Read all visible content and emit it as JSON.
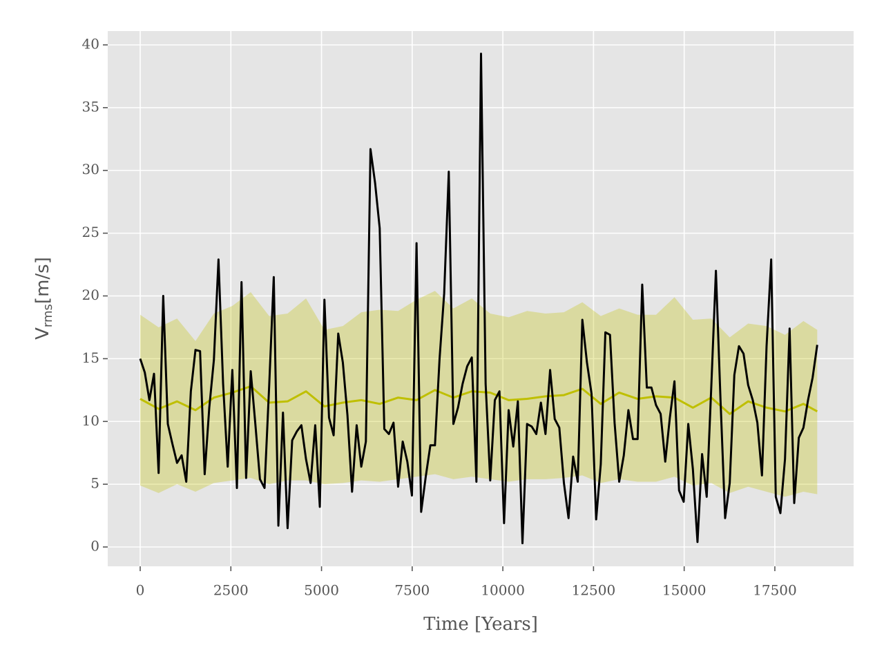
{
  "chart_data": {
    "type": "line",
    "xlabel": "Time [Years]",
    "ylabel": [
      "V",
      "rms",
      "[m/s]"
    ],
    "xlim": [
      -895,
      19672
    ],
    "ylim": [
      -1.54,
      41.1
    ],
    "xticks": [
      0,
      2500,
      5000,
      7500,
      10000,
      12500,
      15000,
      17500
    ],
    "yticks": [
      0,
      5,
      10,
      15,
      20,
      25,
      30,
      35,
      40
    ],
    "grid": true,
    "band": {
      "color": "#bfbf00",
      "alpha": 0.3,
      "x": [
        0,
        508,
        1016,
        1524,
        2032,
        2540,
        3048,
        3556,
        4064,
        4572,
        5080,
        5588,
        6096,
        6604,
        7112,
        7620,
        8128,
        8636,
        9144,
        9652,
        10160,
        10668,
        11176,
        11684,
        12192,
        12700,
        13208,
        13716,
        14224,
        14732,
        15240,
        15748,
        16256,
        16764,
        17272,
        17780,
        18288,
        18669
      ],
      "upper": [
        18.5,
        17.5,
        18.2,
        16.4,
        18.6,
        19.2,
        20.3,
        18.4,
        18.6,
        19.8,
        17.3,
        17.6,
        18.7,
        18.9,
        18.8,
        19.7,
        20.4,
        19.0,
        19.8,
        18.6,
        18.3,
        18.8,
        18.6,
        18.7,
        19.5,
        18.4,
        19.0,
        18.5,
        18.5,
        19.9,
        18.1,
        18.2,
        16.7,
        17.8,
        17.6,
        16.9,
        18.0,
        17.3
      ],
      "lower": [
        4.9,
        4.3,
        5.0,
        4.4,
        5.1,
        5.3,
        5.5,
        5.0,
        5.3,
        5.3,
        5.0,
        5.1,
        5.3,
        5.2,
        5.4,
        5.6,
        5.8,
        5.4,
        5.6,
        5.4,
        5.2,
        5.4,
        5.4,
        5.5,
        5.7,
        5.1,
        5.4,
        5.2,
        5.2,
        5.6,
        4.9,
        5.1,
        4.3,
        4.8,
        4.4,
        4.0,
        4.4,
        4.2
      ]
    },
    "series": [
      {
        "color": "#bfbf00",
        "x": [
          0,
          508,
          1016,
          1524,
          2032,
          2540,
          3048,
          3556,
          4064,
          4572,
          5080,
          5588,
          6096,
          6604,
          7112,
          7620,
          8128,
          8636,
          9144,
          9652,
          10160,
          10668,
          11176,
          11684,
          12192,
          12700,
          13208,
          13716,
          14224,
          14732,
          15240,
          15748,
          16256,
          16764,
          17272,
          17780,
          18288,
          18669
        ],
        "values": [
          11.8,
          11.0,
          11.6,
          10.9,
          11.9,
          12.3,
          12.8,
          11.5,
          11.6,
          12.4,
          11.2,
          11.5,
          11.7,
          11.4,
          11.9,
          11.7,
          12.5,
          11.9,
          12.4,
          12.3,
          11.7,
          11.8,
          12.0,
          12.1,
          12.6,
          11.4,
          12.3,
          11.8,
          12.0,
          11.9,
          11.1,
          11.9,
          10.6,
          11.6,
          11.1,
          10.8,
          11.4,
          10.8
        ]
      },
      {
        "color": "#000000",
        "x": [
          0,
          127,
          254,
          381,
          508,
          635,
          762,
          889,
          1016,
          1143,
          1270,
          1397,
          1524,
          1651,
          1778,
          1905,
          2032,
          2159,
          2286,
          2413,
          2540,
          2667,
          2794,
          2921,
          3048,
          3175,
          3302,
          3429,
          3556,
          3683,
          3810,
          3937,
          4064,
          4191,
          4318,
          4445,
          4572,
          4699,
          4826,
          4953,
          5080,
          5207,
          5334,
          5461,
          5588,
          5715,
          5842,
          5969,
          6096,
          6223,
          6350,
          6477,
          6604,
          6731,
          6858,
          6985,
          7112,
          7239,
          7366,
          7493,
          7620,
          7747,
          7874,
          8001,
          8128,
          8255,
          8382,
          8509,
          8636,
          8763,
          8890,
          9017,
          9144,
          9271,
          9398,
          9525,
          9652,
          9779,
          9906,
          10033,
          10160,
          10287,
          10414,
          10541,
          10668,
          10795,
          10922,
          11049,
          11176,
          11303,
          11430,
          11557,
          11684,
          11811,
          11938,
          12065,
          12192,
          12319,
          12446,
          12573,
          12700,
          12827,
          12954,
          13081,
          13208,
          13335,
          13462,
          13589,
          13716,
          13843,
          13970,
          14097,
          14224,
          14351,
          14478,
          14605,
          14732,
          14859,
          14986,
          15113,
          15240,
          15367,
          15494,
          15621,
          15748,
          15875,
          16002,
          16129,
          16256,
          16383,
          16510,
          16637,
          16764,
          16891,
          17018,
          17145,
          17272,
          17399,
          17526,
          17653,
          17780,
          17907,
          18034,
          18161,
          18288,
          18415,
          18542,
          18669
        ],
        "values": [
          15.0,
          13.9,
          11.7,
          13.8,
          5.9,
          20.0,
          9.8,
          8.2,
          6.7,
          7.3,
          5.2,
          12.4,
          15.7,
          15.6,
          5.8,
          11.1,
          14.9,
          22.9,
          13.0,
          6.4,
          14.1,
          4.7,
          21.1,
          5.5,
          14.0,
          9.8,
          5.4,
          4.7,
          12.8,
          21.5,
          1.7,
          10.7,
          1.5,
          8.5,
          9.2,
          9.7,
          7.0,
          5.1,
          9.7,
          3.2,
          19.7,
          10.3,
          8.9,
          17.0,
          14.7,
          10.5,
          4.4,
          9.7,
          6.4,
          8.4,
          31.7,
          29.0,
          25.4,
          9.4,
          9.0,
          9.9,
          4.8,
          8.4,
          6.8,
          4.1,
          24.2,
          2.8,
          5.6,
          8.1,
          8.1,
          15.0,
          20.2,
          29.9,
          9.8,
          11.1,
          13.0,
          14.4,
          15.1,
          5.2,
          39.3,
          13.0,
          5.3,
          11.7,
          12.4,
          1.9,
          10.9,
          8.0,
          11.6,
          0.3,
          9.8,
          9.6,
          9.0,
          11.5,
          9.0,
          14.1,
          10.2,
          9.5,
          5.1,
          2.3,
          7.2,
          5.2,
          18.1,
          14.7,
          12.2,
          2.2,
          6.6,
          17.1,
          16.9,
          9.9,
          5.2,
          7.3,
          10.9,
          8.6,
          8.6,
          20.9,
          12.7,
          12.7,
          11.3,
          10.6,
          6.8,
          10.3,
          13.2,
          4.5,
          3.6,
          9.8,
          6.2,
          0.4,
          7.4,
          4.0,
          12.8,
          22.0,
          11.7,
          2.3,
          5.1,
          13.7,
          16.0,
          15.4,
          12.9,
          11.7,
          9.9,
          5.7,
          16.0,
          22.9,
          4.0,
          2.7,
          7.0,
          17.4,
          3.5,
          8.7,
          9.5,
          11.7,
          13.5,
          16.1
        ]
      }
    ]
  }
}
